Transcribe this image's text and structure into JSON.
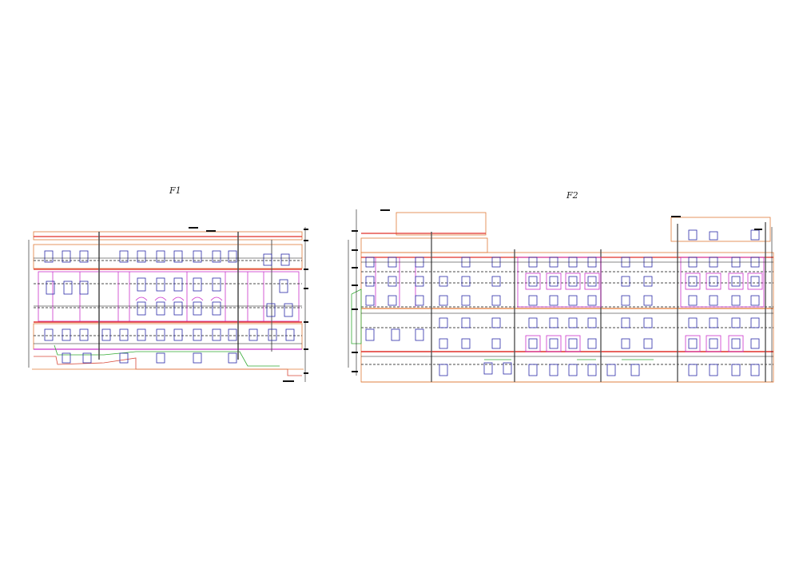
{
  "drawing": {
    "elevation_1": {
      "title": "F1"
    },
    "elevation_2": {
      "title": "F2"
    }
  },
  "colors": {
    "outline": "#e07b39",
    "red": "#e0302a",
    "window": "#2b2ba8",
    "trim": "#cc33cc",
    "green": "#33aa33",
    "pipe": "#555555",
    "dim": "#111111",
    "ground": "#d84a3a"
  }
}
